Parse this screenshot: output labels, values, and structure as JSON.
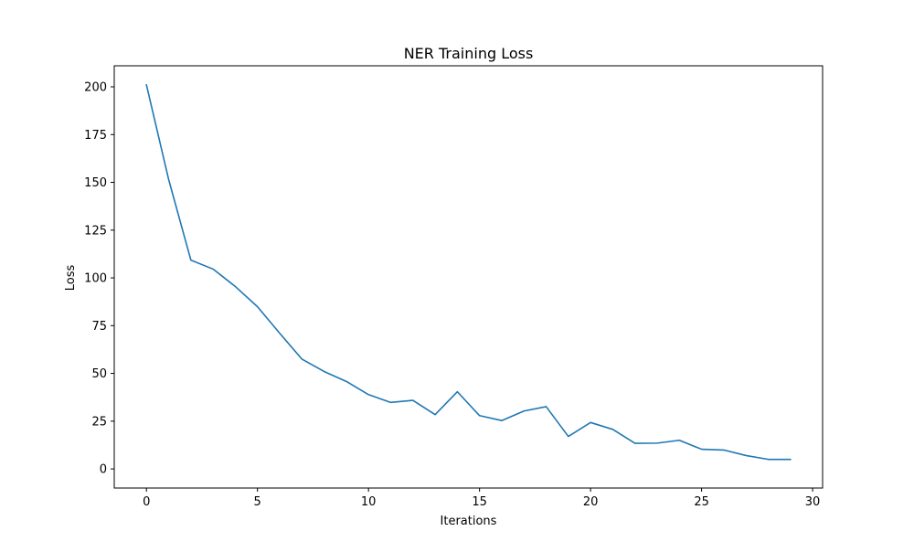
{
  "chart_data": {
    "type": "line",
    "title": "NER Training Loss",
    "xlabel": "Iterations",
    "ylabel": "Loss",
    "xlim": [
      -1.45,
      30.45
    ],
    "ylim": [
      -10.0,
      211.0
    ],
    "xticks": [
      0,
      5,
      10,
      15,
      20,
      25,
      30
    ],
    "yticks": [
      0,
      25,
      50,
      75,
      100,
      125,
      150,
      175,
      200
    ],
    "grid": false,
    "legend": "none",
    "series": [
      {
        "color": "#1f77b4",
        "x": [
          0,
          1,
          2,
          3,
          4,
          5,
          6,
          7,
          8,
          9,
          10,
          11,
          12,
          13,
          14,
          15,
          16,
          17,
          18,
          19,
          20,
          21,
          22,
          23,
          24,
          25,
          26,
          27,
          28,
          29
        ],
        "y": [
          201.0,
          151.5,
          109.3,
          104.6,
          95.5,
          84.9,
          71.0,
          57.5,
          51.0,
          45.8,
          38.9,
          34.8,
          35.9,
          28.4,
          40.4,
          27.9,
          25.3,
          30.3,
          32.6,
          17.0,
          24.3,
          20.7,
          13.4,
          13.5,
          15.0,
          10.3,
          9.9,
          7.0,
          5.0,
          5.0
        ]
      }
    ]
  }
}
